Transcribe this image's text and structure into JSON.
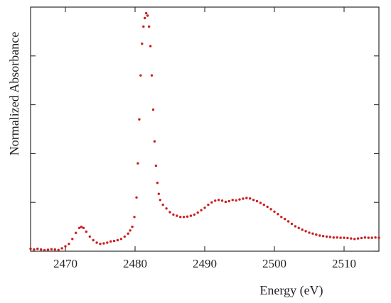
{
  "chart_data": {
    "type": "scatter",
    "title": "",
    "xlabel": "Energy (eV)",
    "ylabel": "Normalized Absorbance",
    "xlim": [
      2465,
      2515
    ],
    "ylim": [
      0,
      1.0
    ],
    "xticks": [
      2470,
      2480,
      2490,
      2500,
      2510
    ],
    "yticks": [
      0.0,
      0.2,
      0.4,
      0.6,
      0.8
    ],
    "ytick_labels_shown": false,
    "grid": false,
    "legend": "none",
    "series": [
      {
        "marker_color": "#cc1f1f",
        "points": [
          [
            2465.0,
            0.01
          ],
          [
            2465.5,
            0.007
          ],
          [
            2466.0,
            0.01
          ],
          [
            2466.5,
            0.007
          ],
          [
            2467.0,
            0.004
          ],
          [
            2467.5,
            0.006
          ],
          [
            2468.0,
            0.008
          ],
          [
            2468.5,
            0.007
          ],
          [
            2469.0,
            0.005
          ],
          [
            2469.5,
            0.012
          ],
          [
            2470.0,
            0.02
          ],
          [
            2470.5,
            0.03
          ],
          [
            2471.0,
            0.05
          ],
          [
            2471.5,
            0.075
          ],
          [
            2472.0,
            0.095
          ],
          [
            2472.3,
            0.1
          ],
          [
            2472.6,
            0.095
          ],
          [
            2473.0,
            0.08
          ],
          [
            2473.5,
            0.06
          ],
          [
            2474.0,
            0.045
          ],
          [
            2474.5,
            0.035
          ],
          [
            2475.0,
            0.03
          ],
          [
            2475.5,
            0.032
          ],
          [
            2476.0,
            0.035
          ],
          [
            2476.5,
            0.04
          ],
          [
            2477.0,
            0.042
          ],
          [
            2477.5,
            0.045
          ],
          [
            2478.0,
            0.05
          ],
          [
            2478.5,
            0.06
          ],
          [
            2479.0,
            0.072
          ],
          [
            2479.3,
            0.085
          ],
          [
            2479.6,
            0.1
          ],
          [
            2479.9,
            0.14
          ],
          [
            2480.2,
            0.22
          ],
          [
            2480.4,
            0.36
          ],
          [
            2480.6,
            0.54
          ],
          [
            2480.8,
            0.72
          ],
          [
            2481.0,
            0.85
          ],
          [
            2481.2,
            0.92
          ],
          [
            2481.4,
            0.955
          ],
          [
            2481.6,
            0.975
          ],
          [
            2481.8,
            0.965
          ],
          [
            2482.0,
            0.92
          ],
          [
            2482.2,
            0.84
          ],
          [
            2482.4,
            0.72
          ],
          [
            2482.6,
            0.58
          ],
          [
            2482.8,
            0.45
          ],
          [
            2483.0,
            0.35
          ],
          [
            2483.2,
            0.28
          ],
          [
            2483.4,
            0.235
          ],
          [
            2483.6,
            0.21
          ],
          [
            2484.0,
            0.19
          ],
          [
            2484.5,
            0.175
          ],
          [
            2485.0,
            0.16
          ],
          [
            2485.5,
            0.15
          ],
          [
            2486.0,
            0.145
          ],
          [
            2486.5,
            0.14
          ],
          [
            2487.0,
            0.14
          ],
          [
            2487.5,
            0.142
          ],
          [
            2488.0,
            0.145
          ],
          [
            2488.5,
            0.15
          ],
          [
            2489.0,
            0.158
          ],
          [
            2489.5,
            0.168
          ],
          [
            2490.0,
            0.178
          ],
          [
            2490.5,
            0.19
          ],
          [
            2491.0,
            0.2
          ],
          [
            2491.5,
            0.207
          ],
          [
            2492.0,
            0.21
          ],
          [
            2492.5,
            0.207
          ],
          [
            2493.0,
            0.202
          ],
          [
            2493.5,
            0.205
          ],
          [
            2494.0,
            0.21
          ],
          [
            2494.5,
            0.208
          ],
          [
            2495.0,
            0.212
          ],
          [
            2495.5,
            0.215
          ],
          [
            2496.0,
            0.218
          ],
          [
            2496.5,
            0.216
          ],
          [
            2497.0,
            0.21
          ],
          [
            2497.5,
            0.205
          ],
          [
            2498.0,
            0.198
          ],
          [
            2498.5,
            0.19
          ],
          [
            2499.0,
            0.182
          ],
          [
            2499.5,
            0.172
          ],
          [
            2500.0,
            0.162
          ],
          [
            2500.5,
            0.152
          ],
          [
            2501.0,
            0.14
          ],
          [
            2501.5,
            0.132
          ],
          [
            2502.0,
            0.122
          ],
          [
            2502.5,
            0.112
          ],
          [
            2503.0,
            0.102
          ],
          [
            2503.5,
            0.095
          ],
          [
            2504.0,
            0.088
          ],
          [
            2504.5,
            0.082
          ],
          [
            2505.0,
            0.076
          ],
          [
            2505.5,
            0.072
          ],
          [
            2506.0,
            0.068
          ],
          [
            2506.5,
            0.064
          ],
          [
            2507.0,
            0.062
          ],
          [
            2507.5,
            0.06
          ],
          [
            2508.0,
            0.058
          ],
          [
            2508.5,
            0.056
          ],
          [
            2509.0,
            0.056
          ],
          [
            2509.5,
            0.055
          ],
          [
            2510.0,
            0.055
          ],
          [
            2510.5,
            0.054
          ],
          [
            2511.0,
            0.052
          ],
          [
            2511.5,
            0.05
          ],
          [
            2512.0,
            0.052
          ],
          [
            2512.5,
            0.054
          ],
          [
            2513.0,
            0.056
          ],
          [
            2513.5,
            0.055
          ],
          [
            2514.0,
            0.055
          ],
          [
            2514.5,
            0.056
          ],
          [
            2515.0,
            0.055
          ]
        ]
      }
    ]
  }
}
